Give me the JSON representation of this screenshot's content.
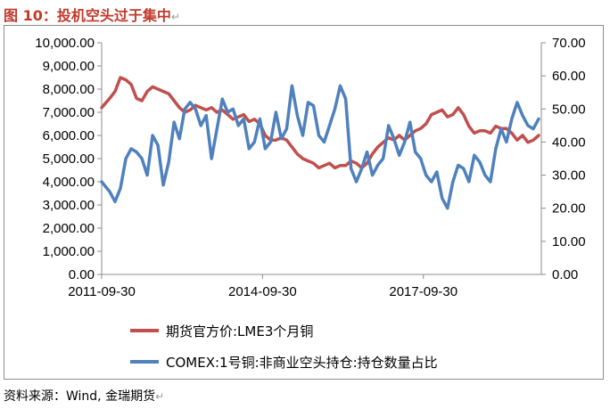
{
  "title": {
    "text": "图 10：投机空头过于集中",
    "mark": "↵"
  },
  "source": {
    "text": "资料来源：Wind, 金瑞期货",
    "mark": "↵"
  },
  "colors": {
    "series1": "#c0504d",
    "series2": "#4f81bd",
    "title": "#c0392b"
  },
  "chart_data": {
    "type": "line",
    "x_tick_labels": [
      "2011-09-30",
      "2014-09-30",
      "2017-09-30"
    ],
    "y_left": {
      "ticks": [
        "0.00",
        "1,000.00",
        "2,000.00",
        "3,000.00",
        "4,000.00",
        "5,000.00",
        "6,000.00",
        "7,000.00",
        "8,000.00",
        "9,000.00",
        "10,000.00"
      ],
      "ylim": [
        0,
        10000
      ]
    },
    "y_right": {
      "ticks": [
        "0.00",
        "10.00",
        "20.00",
        "30.00",
        "40.00",
        "50.00",
        "60.00",
        "70.00"
      ],
      "ylim": [
        0,
        70
      ]
    },
    "legend_placement": "bottom",
    "x": [
      2011.75,
      2011.9,
      2012.0,
      2012.1,
      2012.2,
      2012.3,
      2012.4,
      2012.5,
      2012.6,
      2012.7,
      2012.8,
      2012.9,
      2013.0,
      2013.1,
      2013.2,
      2013.3,
      2013.4,
      2013.5,
      2013.6,
      2013.7,
      2013.8,
      2013.9,
      2014.0,
      2014.1,
      2014.2,
      2014.3,
      2014.4,
      2014.5,
      2014.6,
      2014.7,
      2014.8,
      2014.9,
      2015.0,
      2015.1,
      2015.2,
      2015.3,
      2015.4,
      2015.5,
      2015.6,
      2015.7,
      2015.8,
      2015.9,
      2016.0,
      2016.1,
      2016.2,
      2016.3,
      2016.4,
      2016.5,
      2016.6,
      2016.7,
      2016.8,
      2016.9,
      2017.0,
      2017.1,
      2017.2,
      2017.3,
      2017.4,
      2017.5,
      2017.6,
      2017.7,
      2017.8,
      2017.9,
      2018.0,
      2018.1,
      2018.2,
      2018.3,
      2018.4,
      2018.5,
      2018.6,
      2018.7,
      2018.8,
      2018.9,
      2019.0,
      2019.1,
      2019.2,
      2019.3,
      2019.4,
      2019.5,
      2019.6,
      2019.7,
      2019.8,
      2019.9
    ],
    "series": [
      {
        "name": "期货官方价:LME3个月铜",
        "axis": "left",
        "values": [
          7200,
          7600,
          7900,
          8500,
          8400,
          8200,
          7600,
          7500,
          7900,
          8100,
          8000,
          7900,
          7800,
          7500,
          7200,
          7000,
          7100,
          7300,
          7200,
          7100,
          7200,
          7000,
          7100,
          6900,
          6700,
          6800,
          6900,
          6600,
          6700,
          6500,
          6000,
          5800,
          5800,
          5900,
          5800,
          5500,
          5200,
          5000,
          4900,
          4800,
          4600,
          4700,
          4800,
          4600,
          4700,
          4700,
          4900,
          4800,
          4600,
          4800,
          5200,
          5500,
          5700,
          5900,
          5800,
          6000,
          5800,
          6000,
          6200,
          6300,
          6500,
          6900,
          7000,
          7100,
          6800,
          6900,
          7200,
          6900,
          6400,
          6100,
          6200,
          6200,
          6100,
          6400,
          6300,
          6300,
          6100,
          5800,
          6000,
          5700,
          5800,
          6000
        ]
      },
      {
        "name": "COMEX:1号铜:非商业空头持仓:持仓数量占比",
        "axis": "right",
        "values": [
          28,
          25,
          22,
          26,
          35,
          38,
          37,
          35,
          30,
          42,
          39,
          27,
          34,
          46,
          41,
          50,
          52,
          50,
          45,
          48,
          35,
          44,
          53,
          49,
          50,
          45,
          47,
          38,
          40,
          47,
          38,
          40,
          49,
          41,
          44,
          57,
          48,
          42,
          52,
          51,
          42,
          40,
          45,
          50,
          57,
          53,
          32,
          28,
          32,
          37,
          30,
          33,
          35,
          45,
          41,
          36,
          40,
          46,
          37,
          35,
          30,
          28,
          31,
          23,
          20,
          28,
          33,
          32,
          28,
          36,
          34,
          30,
          28,
          38,
          44,
          40,
          47,
          52,
          48,
          45,
          44,
          47
        ]
      }
    ]
  }
}
